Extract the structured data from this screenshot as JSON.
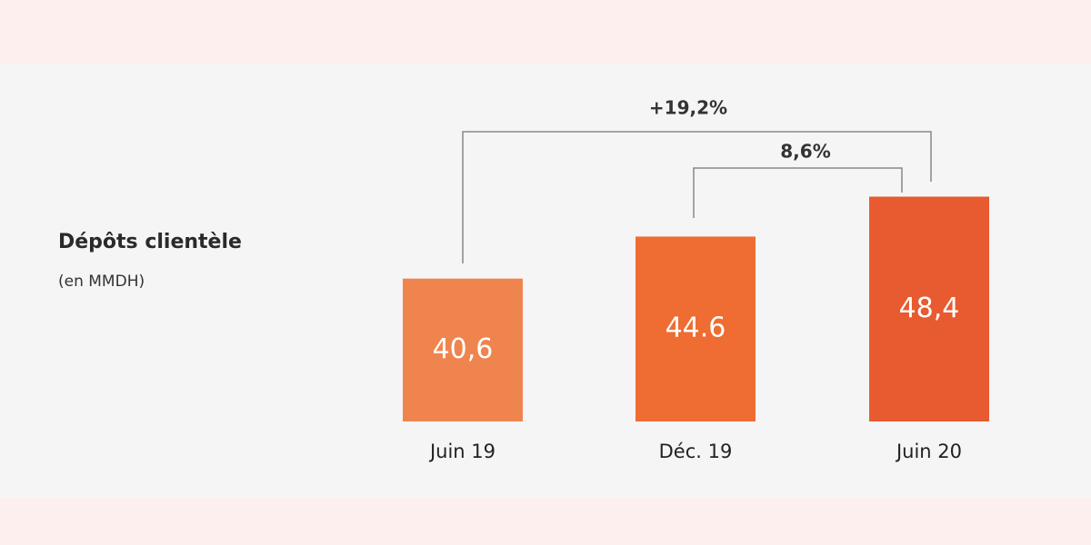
{
  "chart_data": {
    "type": "bar",
    "title": "Dépôts clientèle",
    "subtitle": "(en MMDH)",
    "categories": [
      "Juin 19",
      "Déc. 19",
      "Juin 20"
    ],
    "values": [
      40.6,
      44.6,
      48.4
    ],
    "value_labels": [
      "40,6",
      "44.6",
      "48,4"
    ],
    "colors": [
      "#f0844e",
      "#ef6c33",
      "#e85a30"
    ],
    "ylim": [
      27,
      50
    ],
    "annotations": [
      "+19,2%",
      "8,6%"
    ]
  }
}
